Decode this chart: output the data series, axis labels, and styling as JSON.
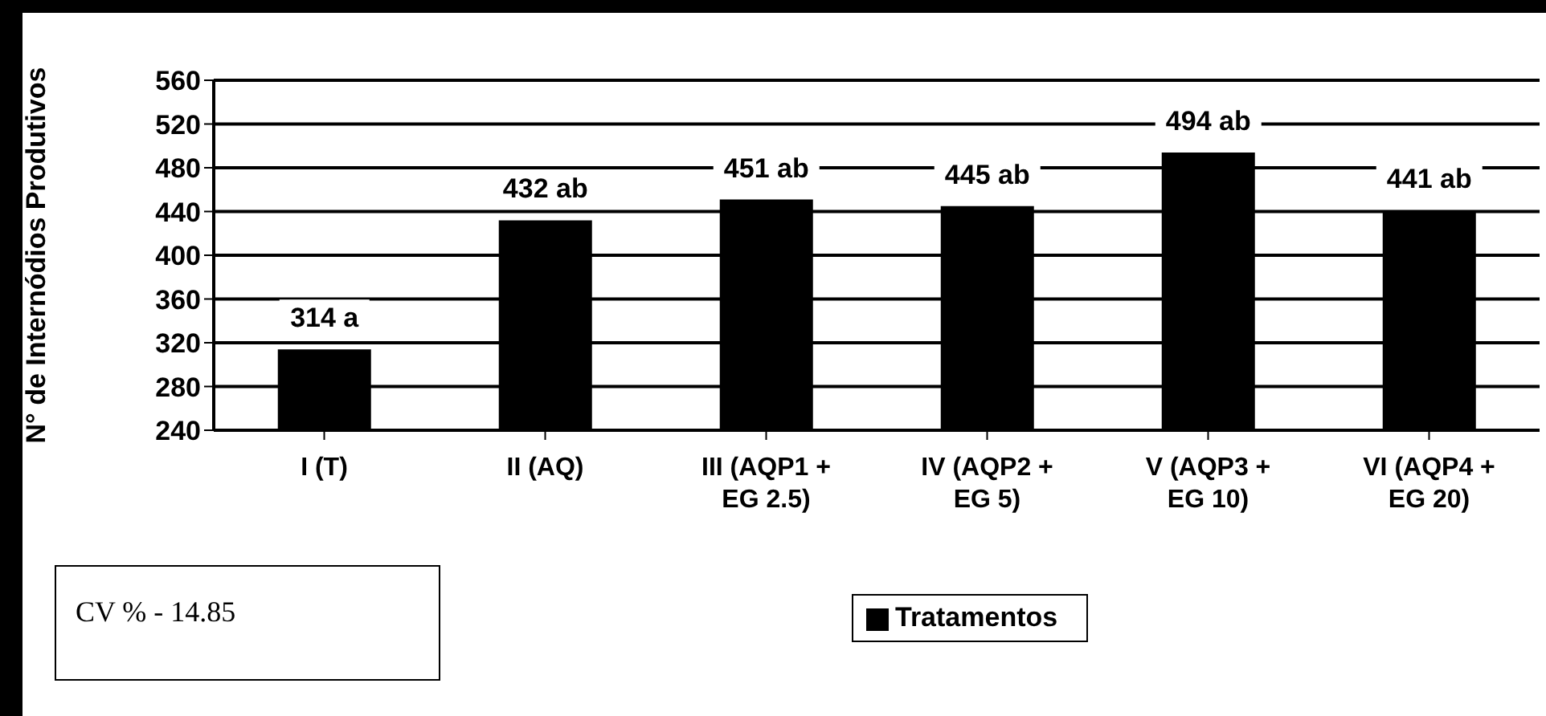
{
  "chart_data": {
    "type": "bar",
    "ylabel": "N° de Internódios Produtivos",
    "categories": [
      "I (T)",
      "II (AQ)",
      "III (AQP1 + EG 2.5)",
      "IV (AQP2 + EG 5)",
      "V (AQP3 + EG 10)",
      "VI (AQP4 + EG 20)"
    ],
    "series": [
      {
        "name": "Tratamentos",
        "color": "#000000",
        "values": [
          314,
          432,
          451,
          445,
          494,
          441
        ],
        "value_labels": [
          "314 a",
          "432 ab",
          "451 ab",
          "445 ab",
          "494 ab",
          "441 ab"
        ]
      }
    ],
    "ylim": [
      240,
      560
    ],
    "yticks": [
      240,
      280,
      320,
      360,
      400,
      440,
      480,
      520,
      560
    ],
    "grid": "y",
    "legend": "bottom",
    "annotations": [
      "CV % - 14.85"
    ]
  }
}
